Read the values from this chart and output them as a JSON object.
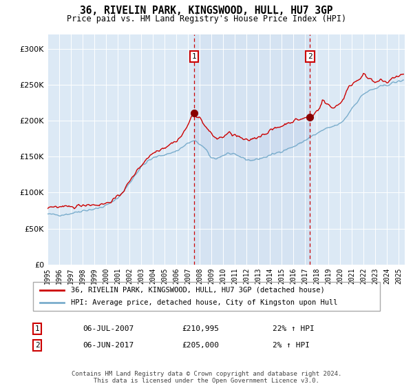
{
  "title": "36, RIVELIN PARK, KINGSWOOD, HULL, HU7 3GP",
  "subtitle": "Price paid vs. HM Land Registry's House Price Index (HPI)",
  "legend_red": "36, RIVELIN PARK, KINGSWOOD, HULL, HU7 3GP (detached house)",
  "legend_blue": "HPI: Average price, detached house, City of Kingston upon Hull",
  "annotation1_date": "06-JUL-2007",
  "annotation1_price": "£210,995",
  "annotation1_hpi": "22% ↑ HPI",
  "annotation2_date": "06-JUN-2017",
  "annotation2_price": "£205,000",
  "annotation2_hpi": "2% ↑ HPI",
  "footnote": "Contains HM Land Registry data © Crown copyright and database right 2024.\nThis data is licensed under the Open Government Licence v3.0.",
  "ylim": [
    0,
    320000
  ],
  "yticks": [
    0,
    50000,
    100000,
    150000,
    200000,
    250000,
    300000
  ],
  "bg_color": "#dce9f5",
  "shade_color": "#c8d8ee",
  "line_color_red": "#cc0000",
  "line_color_blue": "#7aadcc",
  "vline_color": "#cc0000",
  "sale1_x": 2007.5,
  "sale1_y": 210995,
  "sale2_x": 2017.417,
  "sale2_y": 205000,
  "xlim_left": 1995.0,
  "xlim_right": 2025.5
}
